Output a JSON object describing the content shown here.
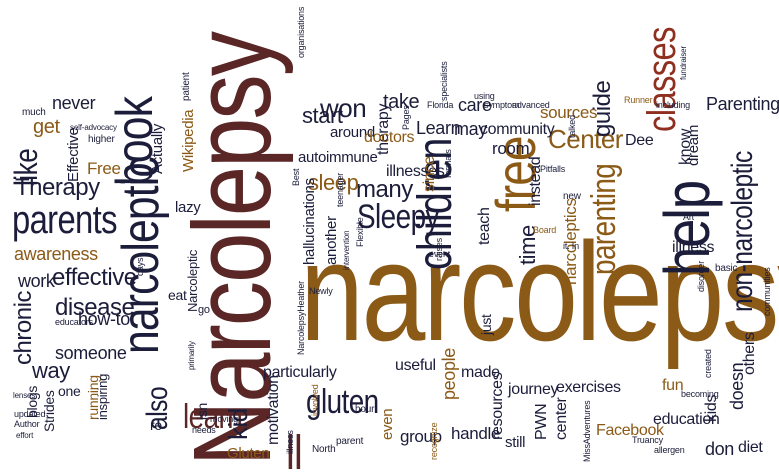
{
  "words": [
    {
      "text": "narcolepsy",
      "color": "#8b5a17"
    },
    {
      "text": "Narcolepsy",
      "color": "#5a2626"
    },
    {
      "text": "narcoleptic",
      "color": "#1c1d3a"
    },
    {
      "text": "book",
      "color": "#1c1d3a"
    },
    {
      "text": "help",
      "color": "#1c1d3a"
    },
    {
      "text": "free",
      "color": "#8b5a17"
    },
    {
      "text": "children",
      "color": "#1c1d3a"
    },
    {
      "text": "parenting",
      "color": "#8b5a17"
    },
    {
      "text": "classes",
      "color": "#8f2f1f"
    },
    {
      "text": "non-narcoleptic",
      "color": "#1c1d3a"
    },
    {
      "text": "parents",
      "color": "#1c1d3a"
    },
    {
      "text": "like",
      "color": "#1c1d3a"
    },
    {
      "text": "Therapy",
      "color": "#1c1d3a"
    },
    {
      "text": "chronic",
      "color": "#1c1d3a"
    },
    {
      "text": "effective",
      "color": "#1c1d3a"
    },
    {
      "text": "disease",
      "color": "#1c1d3a"
    },
    {
      "text": "also",
      "color": "#1c1d3a"
    },
    {
      "text": "learn",
      "color": "#5a2626"
    },
    {
      "text": "gluten",
      "color": "#1c1d3a"
    },
    {
      "text": "ll",
      "color": "#5a2626"
    },
    {
      "text": "kid",
      "color": "#1c1d3a"
    },
    {
      "text": "Sleepy",
      "color": "#1c1d3a"
    },
    {
      "text": "many",
      "color": "#1c1d3a"
    },
    {
      "text": "sleep",
      "color": "#8b5a17"
    },
    {
      "text": "won",
      "color": "#1c1d3a"
    },
    {
      "text": "start",
      "color": "#1c1d3a"
    },
    {
      "text": "take",
      "color": "#1c1d3a"
    },
    {
      "text": "Center",
      "color": "#8b5a17"
    },
    {
      "text": "guide",
      "color": "#1c1d3a"
    },
    {
      "text": "time",
      "color": "#1c1d3a"
    },
    {
      "text": "Parenting",
      "color": "#1c1d3a"
    },
    {
      "text": "way",
      "color": "#1c1d3a"
    },
    {
      "text": "work",
      "color": "#1c1d3a"
    },
    {
      "text": "awareness",
      "color": "#8b5a17"
    },
    {
      "text": "someone",
      "color": "#1c1d3a"
    },
    {
      "text": "how-to",
      "color": "#1c1d3a"
    },
    {
      "text": "never",
      "color": "#1c1d3a"
    },
    {
      "text": "get",
      "color": "#8b5a17"
    },
    {
      "text": "Effective",
      "color": "#1c1d3a"
    },
    {
      "text": "Free",
      "color": "#8b5a17"
    },
    {
      "text": "Actually",
      "color": "#1c1d3a"
    },
    {
      "text": "Wikipedia",
      "color": "#8b5a17"
    },
    {
      "text": "lazy",
      "color": "#1c1d3a"
    },
    {
      "text": "autoimmune",
      "color": "#1c1d3a"
    },
    {
      "text": "therapy",
      "color": "#1c1d3a"
    },
    {
      "text": "around",
      "color": "#1c1d3a"
    },
    {
      "text": "doctors",
      "color": "#8b5a17"
    },
    {
      "text": "Learn",
      "color": "#1c1d3a"
    },
    {
      "text": "may",
      "color": "#1c1d3a"
    },
    {
      "text": "care",
      "color": "#1c1d3a"
    },
    {
      "text": "community",
      "color": "#1c1d3a"
    },
    {
      "text": "sources",
      "color": "#8b5a17"
    },
    {
      "text": "room",
      "color": "#1c1d3a"
    },
    {
      "text": "illnesses",
      "color": "#1c1d3a"
    },
    {
      "text": "since",
      "color": "#8b5a17"
    },
    {
      "text": "hallucinations",
      "color": "#1c1d3a"
    },
    {
      "text": "another",
      "color": "#1c1d3a"
    },
    {
      "text": "teach",
      "color": "#1c1d3a"
    },
    {
      "text": "instead",
      "color": "#1c1d3a"
    },
    {
      "text": "narcoleptics",
      "color": "#8b5a17"
    },
    {
      "text": "Dee",
      "color": "#1c1d3a"
    },
    {
      "text": "know",
      "color": "#1c1d3a"
    },
    {
      "text": "dream",
      "color": "#1c1d3a"
    },
    {
      "text": "illness",
      "color": "#1c1d3a"
    },
    {
      "text": "particularly",
      "color": "#1c1d3a"
    },
    {
      "text": "useful",
      "color": "#1c1d3a"
    },
    {
      "text": "people",
      "color": "#8b5a17"
    },
    {
      "text": "even",
      "color": "#8b5a17"
    },
    {
      "text": "group",
      "color": "#1c1d3a"
    },
    {
      "text": "made",
      "color": "#1c1d3a"
    },
    {
      "text": "journey",
      "color": "#1c1d3a"
    },
    {
      "text": "exercises",
      "color": "#1c1d3a"
    },
    {
      "text": "handle",
      "color": "#1c1d3a"
    },
    {
      "text": "resources",
      "color": "#1c1d3a"
    },
    {
      "text": "still",
      "color": "#1c1d3a"
    },
    {
      "text": "PWN",
      "color": "#1c1d3a"
    },
    {
      "text": "center",
      "color": "#1c1d3a"
    },
    {
      "text": "Facebook",
      "color": "#8b5a17"
    },
    {
      "text": "education",
      "color": "#1c1d3a"
    },
    {
      "text": "fun",
      "color": "#8b5a17"
    },
    {
      "text": "kids",
      "color": "#1c1d3a"
    },
    {
      "text": "doesn",
      "color": "#1c1d3a"
    },
    {
      "text": "don",
      "color": "#1c1d3a"
    },
    {
      "text": "diet",
      "color": "#1c1d3a"
    },
    {
      "text": "others",
      "color": "#1c1d3a"
    },
    {
      "text": "motivation",
      "color": "#1c1d3a"
    },
    {
      "text": "Gluten",
      "color": "#8b5a17"
    },
    {
      "text": "isn",
      "color": "#1c1d3a"
    },
    {
      "text": "re",
      "color": "#1c1d3a"
    },
    {
      "text": "Strides",
      "color": "#1c1d3a"
    },
    {
      "text": "blogs",
      "color": "#1c1d3a"
    },
    {
      "text": "running",
      "color": "#8b5a17"
    },
    {
      "text": "inspiring",
      "color": "#1c1d3a"
    },
    {
      "text": "one",
      "color": "#1c1d3a"
    },
    {
      "text": "eat",
      "color": "#1c1d3a"
    },
    {
      "text": "just",
      "color": "#1c1d3a"
    },
    {
      "text": "Narcoleptic",
      "color": "#1c1d3a"
    },
    {
      "text": "go",
      "color": "#1c1d3a"
    },
    {
      "text": "much",
      "color": "#1c1d3a"
    },
    {
      "text": "self-advocacy",
      "color": "#1c1d3a"
    },
    {
      "text": "higher",
      "color": "#1c1d3a"
    },
    {
      "text": "patient",
      "color": "#1c1d3a"
    },
    {
      "text": "organisations",
      "color": "#1c1d3a"
    },
    {
      "text": "Best",
      "color": "#1c1d3a"
    },
    {
      "text": "teenager",
      "color": "#1c1d3a"
    },
    {
      "text": "Flexible",
      "color": "#1c1d3a"
    },
    {
      "text": "Florida",
      "color": "#1c1d3a"
    },
    {
      "text": "Pages",
      "color": "#1c1d3a"
    },
    {
      "text": "specialists",
      "color": "#1c1d3a"
    },
    {
      "text": "formats",
      "color": "#1c1d3a"
    },
    {
      "text": "using",
      "color": "#1c1d3a"
    },
    {
      "text": "symptom",
      "color": "#1c1d3a"
    },
    {
      "text": "advanced",
      "color": "#1c1d3a"
    },
    {
      "text": "Runner",
      "color": "#8b5a17"
    },
    {
      "text": "fundraiser",
      "color": "#1c1d3a"
    },
    {
      "text": "including",
      "color": "#1c1d3a"
    },
    {
      "text": "talked",
      "color": "#1c1d3a"
    },
    {
      "text": "Pitfalls",
      "color": "#1c1d3a"
    },
    {
      "text": "new",
      "color": "#1c1d3a"
    },
    {
      "text": "Board",
      "color": "#8b5a17"
    },
    {
      "text": "event",
      "color": "#1c1d3a"
    },
    {
      "text": "intervention",
      "color": "#1c1d3a"
    },
    {
      "text": "Art",
      "color": "#1c1d3a"
    },
    {
      "text": "basic",
      "color": "#1c1d3a"
    },
    {
      "text": "communities",
      "color": "#1c1d3a"
    },
    {
      "text": "it. In",
      "color": "#1c1d3a"
    },
    {
      "text": "raises",
      "color": "#1c1d3a"
    },
    {
      "text": "educators",
      "color": "#1c1d3a"
    },
    {
      "text": "days",
      "color": "#1c1d3a"
    },
    {
      "text": "Newly",
      "color": "#1c1d3a"
    },
    {
      "text": "NarcolepsyHeather",
      "color": "#1c1d3a"
    },
    {
      "text": "primarily",
      "color": "#1c1d3a"
    },
    {
      "text": "hour",
      "color": "#1c1d3a"
    },
    {
      "text": "parent",
      "color": "#1c1d3a"
    },
    {
      "text": "North",
      "color": "#1c1d3a"
    },
    {
      "text": "illness",
      "color": "#1c1d3a"
    },
    {
      "text": "moving",
      "color": "#1c1d3a"
    },
    {
      "text": "needs",
      "color": "#1c1d3a"
    },
    {
      "text": "involved",
      "color": "#8b5a17"
    },
    {
      "text": "recognize",
      "color": "#8b5a17"
    },
    {
      "text": "disorder",
      "color": "#1c1d3a"
    },
    {
      "text": "becoming",
      "color": "#1c1d3a"
    },
    {
      "text": "created",
      "color": "#1c1d3a"
    },
    {
      "text": "MissAdventures",
      "color": "#1c1d3a"
    },
    {
      "text": "Truancy",
      "color": "#1c1d3a"
    },
    {
      "text": "allergen",
      "color": "#1c1d3a"
    },
    {
      "text": "Author",
      "color": "#1c1d3a"
    },
    {
      "text": "updated",
      "color": "#1c1d3a"
    },
    {
      "text": "lenses",
      "color": "#1c1d3a"
    },
    {
      "text": "effort",
      "color": "#1c1d3a"
    }
  ]
}
